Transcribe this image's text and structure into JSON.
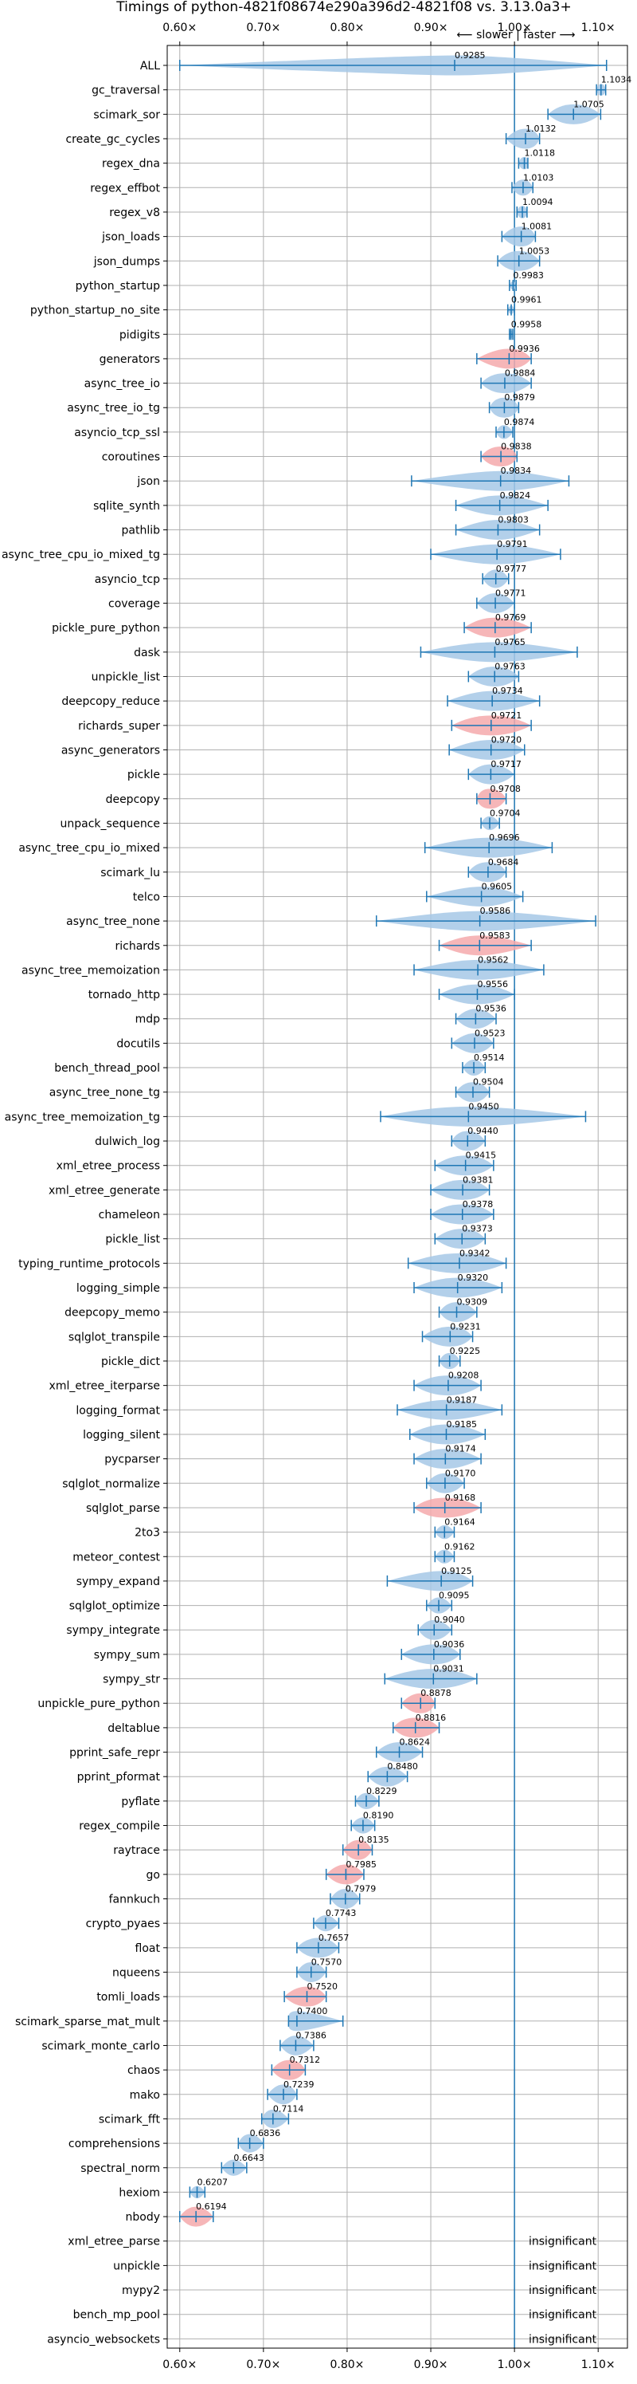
{
  "chart_data": {
    "type": "violin",
    "title": "Timings of python-4821f08674e290a396d2-4821f08 vs. 3.13.0a3+",
    "direction_note": "⟵ slower | faster ⟶",
    "xlim": [
      0.585,
      1.135
    ],
    "x_ticks": [
      0.6,
      0.7,
      0.8,
      0.9,
      1.0,
      1.1
    ],
    "x_tick_labels": [
      "0.60×",
      "0.70×",
      "0.80×",
      "0.90×",
      "1.00×",
      "1.10×"
    ],
    "grid": true,
    "reference_line": 1.0,
    "colors": {
      "faster": "#a6c8e6",
      "slower": "#f4a9ab",
      "line": "#1f77b4",
      "grid": "#b0b0b0"
    },
    "benchmarks": [
      {
        "name": "ALL",
        "mean": 0.9285,
        "low": 0.6,
        "high": 1.11,
        "width": 0.1,
        "color": "faster"
      },
      {
        "name": "gc_traversal",
        "mean": 1.1034,
        "low": 1.098,
        "high": 1.109,
        "width": 0.009,
        "color": "faster"
      },
      {
        "name": "scimark_sor",
        "mean": 1.0705,
        "low": 1.04,
        "high": 1.103,
        "width": 0.035,
        "color": "faster"
      },
      {
        "name": "create_gc_cycles",
        "mean": 1.0132,
        "low": 0.99,
        "high": 1.03,
        "width": 0.025,
        "color": "faster"
      },
      {
        "name": "regex_dna",
        "mean": 1.0118,
        "low": 1.005,
        "high": 1.016,
        "width": 0.01,
        "color": "faster"
      },
      {
        "name": "regex_effbot",
        "mean": 1.0103,
        "low": 0.997,
        "high": 1.022,
        "width": 0.015,
        "color": "faster"
      },
      {
        "name": "regex_v8",
        "mean": 1.0094,
        "low": 1.003,
        "high": 1.015,
        "width": 0.01,
        "color": "faster"
      },
      {
        "name": "json_loads",
        "mean": 1.0081,
        "low": 0.985,
        "high": 1.025,
        "width": 0.025,
        "color": "faster"
      },
      {
        "name": "json_dumps",
        "mean": 1.0053,
        "low": 0.98,
        "high": 1.03,
        "width": 0.03,
        "color": "faster"
      },
      {
        "name": "python_startup",
        "mean": 0.9983,
        "low": 0.994,
        "high": 1.002,
        "width": 0.005,
        "color": "faster"
      },
      {
        "name": "python_startup_no_site",
        "mean": 0.9961,
        "low": 0.992,
        "high": 1.0,
        "width": 0.005,
        "color": "faster"
      },
      {
        "name": "pidigits",
        "mean": 0.9958,
        "low": 0.994,
        "high": 0.998,
        "width": 0.004,
        "color": "faster"
      },
      {
        "name": "generators",
        "mean": 0.9936,
        "low": 0.955,
        "high": 1.02,
        "width": 0.035,
        "color": "slower"
      },
      {
        "name": "async_tree_io",
        "mean": 0.9884,
        "low": 0.96,
        "high": 1.02,
        "width": 0.035,
        "color": "faster"
      },
      {
        "name": "async_tree_io_tg",
        "mean": 0.9879,
        "low": 0.97,
        "high": 1.005,
        "width": 0.025,
        "color": "faster"
      },
      {
        "name": "asyncio_tcp_ssl",
        "mean": 0.9874,
        "low": 0.978,
        "high": 0.998,
        "width": 0.012,
        "color": "faster"
      },
      {
        "name": "coroutines",
        "mean": 0.9838,
        "low": 0.96,
        "high": 1.003,
        "width": 0.03,
        "color": "slower"
      },
      {
        "name": "json",
        "mean": 0.9834,
        "low": 0.877,
        "high": 1.065,
        "width": 0.06,
        "color": "faster"
      },
      {
        "name": "sqlite_synth",
        "mean": 0.9824,
        "low": 0.93,
        "high": 1.04,
        "width": 0.045,
        "color": "faster"
      },
      {
        "name": "pathlib",
        "mean": 0.9803,
        "low": 0.93,
        "high": 1.03,
        "width": 0.04,
        "color": "faster"
      },
      {
        "name": "async_tree_cpu_io_mixed_tg",
        "mean": 0.9791,
        "low": 0.9,
        "high": 1.055,
        "width": 0.06,
        "color": "faster"
      },
      {
        "name": "asyncio_tcp",
        "mean": 0.9777,
        "low": 0.962,
        "high": 0.993,
        "width": 0.018,
        "color": "faster"
      },
      {
        "name": "coverage",
        "mean": 0.9771,
        "low": 0.955,
        "high": 1.0,
        "width": 0.025,
        "color": "faster"
      },
      {
        "name": "pickle_pure_python",
        "mean": 0.9769,
        "low": 0.94,
        "high": 1.02,
        "width": 0.04,
        "color": "slower"
      },
      {
        "name": "dask",
        "mean": 0.9765,
        "low": 0.888,
        "high": 1.075,
        "width": 0.07,
        "color": "faster"
      },
      {
        "name": "unpickle_list",
        "mean": 0.9763,
        "low": 0.945,
        "high": 1.005,
        "width": 0.035,
        "color": "faster"
      },
      {
        "name": "deepcopy_reduce",
        "mean": 0.9734,
        "low": 0.92,
        "high": 1.03,
        "width": 0.045,
        "color": "faster"
      },
      {
        "name": "richards_super",
        "mean": 0.9721,
        "low": 0.925,
        "high": 1.02,
        "width": 0.05,
        "color": "slower"
      },
      {
        "name": "async_generators",
        "mean": 0.972,
        "low": 0.922,
        "high": 1.012,
        "width": 0.045,
        "color": "faster"
      },
      {
        "name": "pickle",
        "mean": 0.9717,
        "low": 0.945,
        "high": 1.0,
        "width": 0.03,
        "color": "faster"
      },
      {
        "name": "deepcopy",
        "mean": 0.9708,
        "low": 0.955,
        "high": 0.99,
        "width": 0.025,
        "color": "slower"
      },
      {
        "name": "unpack_sequence",
        "mean": 0.9704,
        "low": 0.96,
        "high": 0.982,
        "width": 0.012,
        "color": "faster"
      },
      {
        "name": "async_tree_cpu_io_mixed",
        "mean": 0.9696,
        "low": 0.893,
        "high": 1.045,
        "width": 0.06,
        "color": "faster"
      },
      {
        "name": "scimark_lu",
        "mean": 0.9684,
        "low": 0.945,
        "high": 0.99,
        "width": 0.03,
        "color": "faster"
      },
      {
        "name": "telco",
        "mean": 0.9605,
        "low": 0.895,
        "high": 1.01,
        "width": 0.045,
        "color": "faster"
      },
      {
        "name": "async_tree_none",
        "mean": 0.9586,
        "low": 0.835,
        "high": 1.097,
        "width": 0.08,
        "color": "faster"
      },
      {
        "name": "richards",
        "mean": 0.9583,
        "low": 0.91,
        "high": 1.02,
        "width": 0.045,
        "color": "slower"
      },
      {
        "name": "async_tree_memoization",
        "mean": 0.9562,
        "low": 0.88,
        "high": 1.035,
        "width": 0.06,
        "color": "faster"
      },
      {
        "name": "tornado_http",
        "mean": 0.9556,
        "low": 0.91,
        "high": 1.0,
        "width": 0.045,
        "color": "faster"
      },
      {
        "name": "mdp",
        "mean": 0.9536,
        "low": 0.93,
        "high": 0.978,
        "width": 0.025,
        "color": "faster"
      },
      {
        "name": "docutils",
        "mean": 0.9523,
        "low": 0.925,
        "high": 0.975,
        "width": 0.025,
        "color": "faster"
      },
      {
        "name": "bench_thread_pool",
        "mean": 0.9514,
        "low": 0.938,
        "high": 0.965,
        "width": 0.015,
        "color": "faster"
      },
      {
        "name": "async_tree_none_tg",
        "mean": 0.9504,
        "low": 0.93,
        "high": 0.97,
        "width": 0.025,
        "color": "faster"
      },
      {
        "name": "async_tree_memoization_tg",
        "mean": 0.945,
        "low": 0.84,
        "high": 1.085,
        "width": 0.09,
        "color": "faster"
      },
      {
        "name": "dulwich_log",
        "mean": 0.944,
        "low": 0.925,
        "high": 0.965,
        "width": 0.025,
        "color": "faster"
      },
      {
        "name": "xml_etree_process",
        "mean": 0.9415,
        "low": 0.905,
        "high": 0.975,
        "width": 0.04,
        "color": "faster"
      },
      {
        "name": "xml_etree_generate",
        "mean": 0.9381,
        "low": 0.9,
        "high": 0.97,
        "width": 0.04,
        "color": "faster"
      },
      {
        "name": "chameleon",
        "mean": 0.9378,
        "low": 0.9,
        "high": 0.975,
        "width": 0.045,
        "color": "faster"
      },
      {
        "name": "pickle_list",
        "mean": 0.9373,
        "low": 0.905,
        "high": 0.965,
        "width": 0.035,
        "color": "faster"
      },
      {
        "name": "typing_runtime_protocols",
        "mean": 0.9342,
        "low": 0.873,
        "high": 0.99,
        "width": 0.06,
        "color": "faster"
      },
      {
        "name": "logging_simple",
        "mean": 0.932,
        "low": 0.88,
        "high": 0.985,
        "width": 0.05,
        "color": "faster"
      },
      {
        "name": "deepcopy_memo",
        "mean": 0.9309,
        "low": 0.91,
        "high": 0.955,
        "width": 0.025,
        "color": "faster"
      },
      {
        "name": "sqlglot_transpile",
        "mean": 0.9231,
        "low": 0.89,
        "high": 0.95,
        "width": 0.035,
        "color": "faster"
      },
      {
        "name": "pickle_dict",
        "mean": 0.9225,
        "low": 0.91,
        "high": 0.935,
        "width": 0.015,
        "color": "faster"
      },
      {
        "name": "xml_etree_iterparse",
        "mean": 0.9208,
        "low": 0.88,
        "high": 0.96,
        "width": 0.045,
        "color": "faster"
      },
      {
        "name": "logging_format",
        "mean": 0.9187,
        "low": 0.86,
        "high": 0.985,
        "width": 0.05,
        "color": "faster"
      },
      {
        "name": "logging_silent",
        "mean": 0.9185,
        "low": 0.875,
        "high": 0.965,
        "width": 0.045,
        "color": "faster"
      },
      {
        "name": "pycparser",
        "mean": 0.9174,
        "low": 0.88,
        "high": 0.96,
        "width": 0.04,
        "color": "faster"
      },
      {
        "name": "sqlglot_normalize",
        "mean": 0.917,
        "low": 0.895,
        "high": 0.94,
        "width": 0.025,
        "color": "faster"
      },
      {
        "name": "sqlglot_parse",
        "mean": 0.9168,
        "low": 0.88,
        "high": 0.96,
        "width": 0.045,
        "color": "slower"
      },
      {
        "name": "2to3",
        "mean": 0.9164,
        "low": 0.905,
        "high": 0.928,
        "width": 0.012,
        "color": "faster"
      },
      {
        "name": "meteor_contest",
        "mean": 0.9162,
        "low": 0.905,
        "high": 0.928,
        "width": 0.012,
        "color": "faster"
      },
      {
        "name": "sympy_expand",
        "mean": 0.9125,
        "low": 0.848,
        "high": 0.95,
        "width": 0.045,
        "color": "faster"
      },
      {
        "name": "sqlglot_optimize",
        "mean": 0.9095,
        "low": 0.895,
        "high": 0.925,
        "width": 0.015,
        "color": "faster"
      },
      {
        "name": "sympy_integrate",
        "mean": 0.904,
        "low": 0.885,
        "high": 0.925,
        "width": 0.022,
        "color": "faster"
      },
      {
        "name": "sympy_sum",
        "mean": 0.9036,
        "low": 0.865,
        "high": 0.935,
        "width": 0.04,
        "color": "faster"
      },
      {
        "name": "sympy_str",
        "mean": 0.9031,
        "low": 0.845,
        "high": 0.955,
        "width": 0.055,
        "color": "faster"
      },
      {
        "name": "unpickle_pure_python",
        "mean": 0.8878,
        "low": 0.865,
        "high": 0.905,
        "width": 0.025,
        "color": "slower"
      },
      {
        "name": "deltablue",
        "mean": 0.8816,
        "low": 0.855,
        "high": 0.91,
        "width": 0.035,
        "color": "slower"
      },
      {
        "name": "pprint_safe_repr",
        "mean": 0.8624,
        "low": 0.835,
        "high": 0.89,
        "width": 0.03,
        "color": "faster"
      },
      {
        "name": "pprint_pformat",
        "mean": 0.848,
        "low": 0.825,
        "high": 0.872,
        "width": 0.025,
        "color": "faster"
      },
      {
        "name": "pyflate",
        "mean": 0.8229,
        "low": 0.81,
        "high": 0.838,
        "width": 0.015,
        "color": "faster"
      },
      {
        "name": "regex_compile",
        "mean": 0.819,
        "low": 0.805,
        "high": 0.833,
        "width": 0.015,
        "color": "faster"
      },
      {
        "name": "raytrace",
        "mean": 0.8135,
        "low": 0.795,
        "high": 0.83,
        "width": 0.02,
        "color": "slower"
      },
      {
        "name": "go",
        "mean": 0.7985,
        "low": 0.775,
        "high": 0.82,
        "width": 0.025,
        "color": "slower"
      },
      {
        "name": "fannkuch",
        "mean": 0.7979,
        "low": 0.78,
        "high": 0.815,
        "width": 0.02,
        "color": "faster"
      },
      {
        "name": "crypto_pyaes",
        "mean": 0.7743,
        "low": 0.76,
        "high": 0.79,
        "width": 0.015,
        "color": "faster"
      },
      {
        "name": "float",
        "mean": 0.7657,
        "low": 0.74,
        "high": 0.79,
        "width": 0.03,
        "color": "faster"
      },
      {
        "name": "nqueens",
        "mean": 0.757,
        "low": 0.74,
        "high": 0.775,
        "width": 0.02,
        "color": "faster"
      },
      {
        "name": "tomli_loads",
        "mean": 0.752,
        "low": 0.725,
        "high": 0.775,
        "width": 0.03,
        "color": "slower"
      },
      {
        "name": "scimark_sparse_mat_mult",
        "mean": 0.74,
        "low": 0.73,
        "high": 0.795,
        "width": 0.025,
        "color": "faster"
      },
      {
        "name": "scimark_monte_carlo",
        "mean": 0.7386,
        "low": 0.72,
        "high": 0.76,
        "width": 0.02,
        "color": "faster"
      },
      {
        "name": "chaos",
        "mean": 0.7312,
        "low": 0.71,
        "high": 0.75,
        "width": 0.025,
        "color": "slower"
      },
      {
        "name": "mako",
        "mean": 0.7239,
        "low": 0.705,
        "high": 0.74,
        "width": 0.02,
        "color": "faster"
      },
      {
        "name": "scimark_fft",
        "mean": 0.7114,
        "low": 0.698,
        "high": 0.73,
        "width": 0.018,
        "color": "faster"
      },
      {
        "name": "comprehensions",
        "mean": 0.6836,
        "low": 0.67,
        "high": 0.7,
        "width": 0.018,
        "color": "faster"
      },
      {
        "name": "spectral_norm",
        "mean": 0.6643,
        "low": 0.65,
        "high": 0.68,
        "width": 0.015,
        "color": "faster"
      },
      {
        "name": "hexiom",
        "mean": 0.6207,
        "low": 0.612,
        "high": 0.63,
        "width": 0.01,
        "color": "faster"
      },
      {
        "name": "nbody",
        "mean": 0.6194,
        "low": 0.6,
        "high": 0.64,
        "width": 0.022,
        "color": "slower"
      },
      {
        "name": "xml_etree_parse",
        "insignificant": true
      },
      {
        "name": "unpickle",
        "insignificant": true
      },
      {
        "name": "mypy2",
        "insignificant": true
      },
      {
        "name": "bench_mp_pool",
        "insignificant": true
      },
      {
        "name": "asyncio_websockets",
        "insignificant": true
      }
    ],
    "insignificant_label": "insignificant"
  }
}
